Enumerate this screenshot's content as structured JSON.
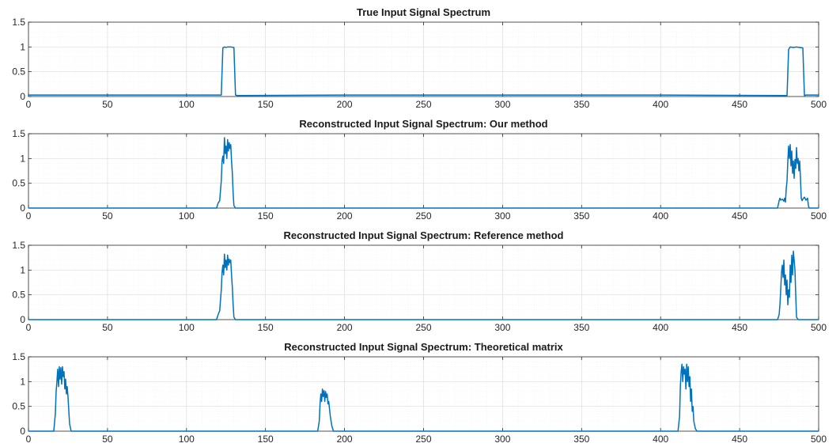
{
  "chart_data": [
    {
      "type": "line",
      "title": "True Input Signal Spectrum",
      "xlim": [
        0,
        500
      ],
      "ylim": [
        0,
        1.5
      ],
      "xticks": [
        "0",
        "50",
        "100",
        "150",
        "200",
        "250",
        "300",
        "350",
        "400",
        "450",
        "500"
      ],
      "yticks": [
        "0",
        "0.5",
        "1",
        "1.5"
      ],
      "grid": true,
      "color": "#0072BD",
      "series": [
        {
          "x": [
            0,
            50,
            100,
            122,
            123,
            124,
            125,
            126,
            128,
            130,
            131,
            132,
            200,
            300,
            400,
            480,
            481,
            482,
            484,
            486,
            488,
            490,
            491,
            492,
            500
          ],
          "y": [
            0.03,
            0.03,
            0.03,
            0.03,
            0.98,
            1.0,
            0.99,
            1.0,
            1.0,
            0.99,
            0.03,
            0.02,
            0.03,
            0.03,
            0.03,
            0.02,
            0.95,
            1.0,
            0.99,
            1.0,
            0.99,
            0.98,
            0.02,
            0.03,
            0.03
          ]
        }
      ]
    },
    {
      "type": "line",
      "title": "Reconstructed Input Signal Spectrum: Our method",
      "xlim": [
        0,
        500
      ],
      "ylim": [
        0,
        1.5
      ],
      "xticks": [
        "0",
        "50",
        "100",
        "150",
        "200",
        "250",
        "300",
        "350",
        "400",
        "450",
        "500"
      ],
      "yticks": [
        "0",
        "0.5",
        "1",
        "1.5"
      ],
      "grid": true,
      "color": "#0072BD",
      "series": [
        {
          "x": [
            0,
            119,
            120,
            121,
            122,
            122.5,
            123,
            123.5,
            124,
            124.5,
            125,
            125.5,
            126,
            126.5,
            127,
            127.5,
            128,
            128.5,
            129,
            129.5,
            130,
            131,
            474,
            475,
            475.5,
            476,
            477,
            478,
            478.5,
            479,
            479.5,
            480,
            480.5,
            481,
            481.5,
            482,
            482.5,
            483,
            483.5,
            484,
            484.5,
            485,
            485.5,
            486,
            486.5,
            487,
            487.5,
            488,
            488.5,
            489,
            489.5,
            490,
            491,
            492,
            493,
            493.5,
            494,
            500
          ],
          "y": [
            0,
            0,
            0.1,
            0.15,
            0.55,
            0.95,
            1.05,
            0.9,
            1.42,
            1.1,
            1.25,
            1.0,
            1.38,
            1.15,
            1.32,
            1.2,
            1.28,
            0.95,
            0.7,
            0.3,
            0.05,
            0,
            0,
            0.15,
            0.2,
            0.16,
            0.18,
            0.14,
            0.2,
            0.12,
            0.4,
            0.55,
            0.95,
            1.25,
            1.0,
            1.28,
            0.85,
            1.15,
            0.7,
            0.95,
            0.6,
            0.98,
            0.8,
            1.22,
            0.9,
            1.0,
            0.75,
            0.95,
            0.6,
            0.2,
            0.15,
            0.18,
            0.22,
            0.16,
            0.2,
            0.05,
            0,
            0
          ]
        }
      ]
    },
    {
      "type": "line",
      "title": "Reconstructed Input Signal Spectrum: Reference method",
      "xlim": [
        0,
        500
      ],
      "ylim": [
        0,
        1.5
      ],
      "xticks": [
        "0",
        "50",
        "100",
        "150",
        "200",
        "250",
        "300",
        "350",
        "400",
        "450",
        "500"
      ],
      "yticks": [
        "0",
        "0.5",
        "1",
        "1.5"
      ],
      "grid": true,
      "color": "#0072BD",
      "series": [
        {
          "x": [
            0,
            119,
            120,
            121,
            122,
            122.5,
            123,
            123.5,
            124,
            124.5,
            125,
            125.5,
            126,
            126.5,
            127,
            127.5,
            128,
            128.5,
            129,
            129.5,
            130,
            131,
            474,
            475,
            475.5,
            476,
            476.5,
            477,
            477.5,
            478,
            478.5,
            479,
            479.5,
            480,
            480.5,
            481,
            481.5,
            482,
            482.5,
            483,
            483.5,
            484,
            484.5,
            485,
            485.5,
            486,
            487,
            500
          ],
          "y": [
            0,
            0,
            0.1,
            0.18,
            0.6,
            0.95,
            1.1,
            0.9,
            1.32,
            1.05,
            1.2,
            1.0,
            1.3,
            1.1,
            1.22,
            1.15,
            1.2,
            0.9,
            0.65,
            0.3,
            0.05,
            0,
            0,
            0.1,
            0.3,
            0.6,
            0.95,
            1.1,
            0.85,
            1.2,
            0.7,
            0.9,
            0.5,
            0.8,
            0.3,
            0.6,
            0.45,
            1.1,
            0.75,
            1.3,
            0.9,
            1.38,
            1.2,
            1.0,
            0.5,
            0.05,
            0,
            0
          ]
        }
      ]
    },
    {
      "type": "line",
      "title": "Reconstructed Input Signal Spectrum: Theoretical matrix",
      "xlim": [
        0,
        500
      ],
      "ylim": [
        0,
        1.5
      ],
      "xticks": [
        "0",
        "50",
        "100",
        "150",
        "200",
        "250",
        "300",
        "350",
        "400",
        "450",
        "500"
      ],
      "yticks": [
        "0",
        "0.5",
        "1",
        "1.5"
      ],
      "grid": true,
      "color": "#0072BD",
      "series": [
        {
          "x": [
            0,
            16,
            17,
            17.5,
            18,
            18.5,
            19,
            19.5,
            20,
            20.5,
            21,
            21.5,
            22,
            22.5,
            23,
            23.5,
            24,
            24.5,
            25,
            26,
            27,
            183,
            184,
            184.5,
            185,
            185.5,
            186,
            186.5,
            187,
            187.5,
            188,
            188.5,
            189,
            189.5,
            190,
            190.5,
            191,
            192,
            193,
            411,
            412,
            412.5,
            413,
            413.5,
            414,
            414.5,
            415,
            415.5,
            416,
            416.5,
            417,
            417.5,
            418,
            418.5,
            419,
            419.5,
            420,
            420.5,
            421,
            422,
            423,
            500
          ],
          "y": [
            0,
            0,
            0.35,
            0.8,
            1.0,
            1.25,
            0.9,
            1.3,
            1.05,
            1.28,
            0.95,
            1.3,
            1.1,
            1.2,
            0.85,
            1.05,
            0.75,
            0.9,
            0.7,
            0.15,
            0,
            0,
            0.2,
            0.55,
            0.75,
            0.6,
            0.85,
            0.7,
            0.82,
            0.6,
            0.8,
            0.68,
            0.75,
            0.55,
            0.6,
            0.45,
            0.3,
            0.1,
            0,
            0,
            0.3,
            0.9,
            1.2,
            1.35,
            1.0,
            1.3,
            1.15,
            1.25,
            0.85,
            1.35,
            1.0,
            1.3,
            0.9,
            1.1,
            0.6,
            0.85,
            0.4,
            0.5,
            0.2,
            0.05,
            0,
            0
          ]
        }
      ]
    }
  ]
}
